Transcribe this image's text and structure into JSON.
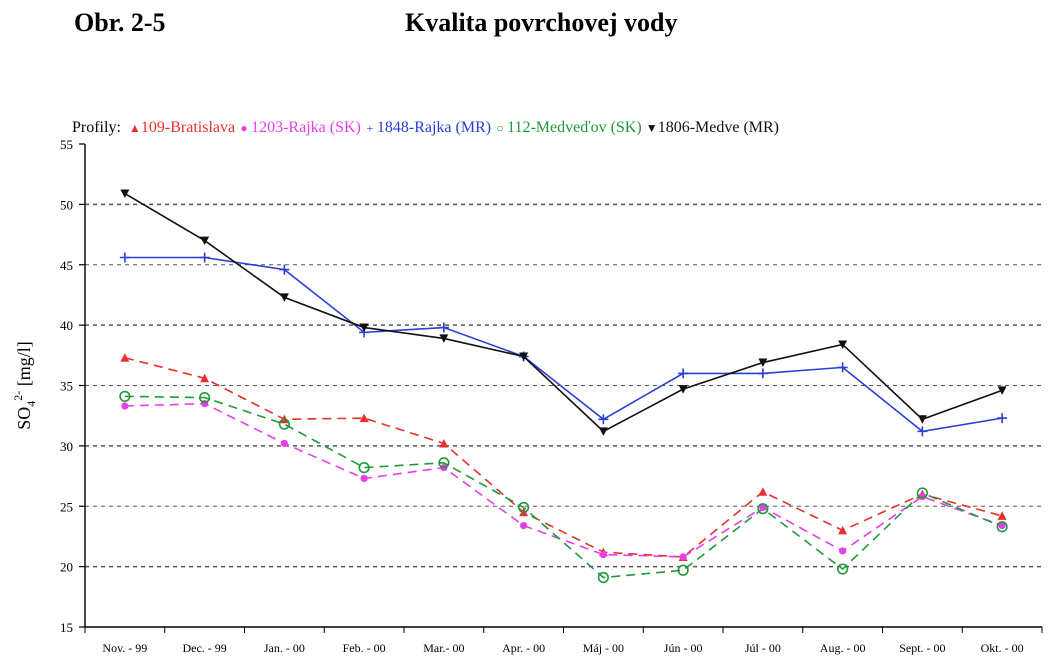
{
  "header": {
    "figure_label": "Obr. 2-5",
    "title": "Kvalita povrchovej vody"
  },
  "chart_data": {
    "type": "line",
    "legend_label": "Profily:",
    "ylabel": {
      "main": "SO",
      "sub": "4",
      "sup": "2-",
      "unit": " [mg/l]"
    },
    "ylim": [
      15,
      55
    ],
    "yticks": [
      15,
      20,
      25,
      30,
      35,
      40,
      45,
      50,
      55
    ],
    "grid": "horizontal dashed",
    "legend_position": "top",
    "categories": [
      "Nov. - 99",
      "Dec. - 99",
      "Jan. - 00",
      "Feb. - 00",
      "Mar.- 00",
      "Apr. - 00",
      "Máj - 00",
      "Jún - 00",
      "Júl - 00",
      "Aug. - 00",
      "Sept. - 00",
      "Okt. - 00"
    ],
    "series": [
      {
        "name": "109-Bratislava",
        "color": "#e8312a",
        "dash": true,
        "marker": "triangle-up",
        "values": [
          37.3,
          35.6,
          32.2,
          32.3,
          30.2,
          24.5,
          21.2,
          20.8,
          26.2,
          23.0,
          26.0,
          24.2
        ]
      },
      {
        "name": "1203-Rajka (SK)",
        "color": "#e83ee8",
        "dash": true,
        "marker": "dot",
        "values": [
          33.3,
          33.5,
          30.2,
          27.3,
          28.2,
          23.4,
          21.0,
          20.8,
          24.9,
          21.3,
          25.8,
          23.4
        ]
      },
      {
        "name": "1848-Rajka (MR)",
        "color": "#2a3fd6",
        "dash": false,
        "marker": "plus",
        "values": [
          45.6,
          45.6,
          44.6,
          39.4,
          39.8,
          37.4,
          32.2,
          36.0,
          36.0,
          36.5,
          31.2,
          32.3
        ]
      },
      {
        "name": "112-Medveďov (SK)",
        "color": "#1f9a3a",
        "dash": true,
        "marker": "circle",
        "values": [
          34.1,
          34.0,
          31.8,
          28.2,
          28.6,
          24.9,
          19.1,
          19.7,
          24.8,
          19.8,
          26.1,
          23.3
        ]
      },
      {
        "name": "1806-Medve (MR)",
        "color": "#111111",
        "dash": false,
        "marker": "triangle-down",
        "values": [
          50.9,
          47.0,
          42.3,
          39.8,
          38.9,
          37.4,
          31.2,
          34.7,
          36.9,
          38.4,
          32.2,
          34.6
        ]
      }
    ]
  }
}
